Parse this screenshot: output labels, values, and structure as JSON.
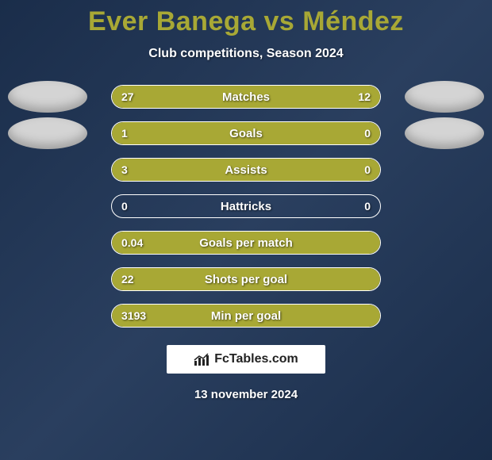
{
  "title": "Ever Banega vs Méndez",
  "subtitle": "Club competitions, Season 2024",
  "colors": {
    "accent": "#a8a835",
    "background_start": "#1a2d4a",
    "background_mid": "#2a3f5f",
    "oval": "#d4d4d4",
    "text": "#ffffff"
  },
  "rows": [
    {
      "label": "Matches",
      "left": "27",
      "right": "12",
      "left_pct": 67,
      "right_pct": 33,
      "show_ovals": true
    },
    {
      "label": "Goals",
      "left": "1",
      "right": "0",
      "left_pct": 77,
      "right_pct": 23,
      "show_ovals": true
    },
    {
      "label": "Assists",
      "left": "3",
      "right": "0",
      "left_pct": 77,
      "right_pct": 23,
      "show_ovals": false
    },
    {
      "label": "Hattricks",
      "left": "0",
      "right": "0",
      "left_pct": 0,
      "right_pct": 0,
      "show_ovals": false
    },
    {
      "label": "Goals per match",
      "left": "0.04",
      "right": "",
      "left_pct": 100,
      "right_pct": 0,
      "show_ovals": false,
      "single": true
    },
    {
      "label": "Shots per goal",
      "left": "22",
      "right": "",
      "left_pct": 100,
      "right_pct": 0,
      "show_ovals": false,
      "single": true
    },
    {
      "label": "Min per goal",
      "left": "3193",
      "right": "",
      "left_pct": 100,
      "right_pct": 0,
      "show_ovals": false,
      "single": true
    }
  ],
  "watermark": "FcTables.com",
  "date": "13 november 2024"
}
